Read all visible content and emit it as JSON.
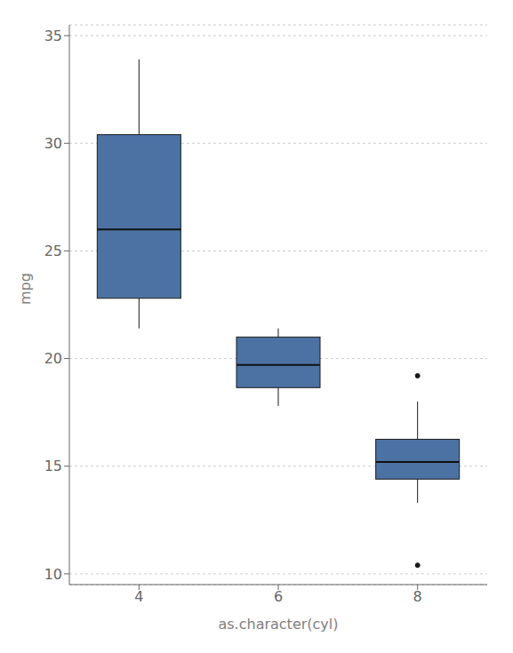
{
  "chart_data": {
    "type": "box",
    "xlabel": "as.character(cyl)",
    "ylabel": "mpg",
    "categories": [
      "4",
      "6",
      "8"
    ],
    "whisker_low": [
      21.4,
      17.8,
      13.3
    ],
    "q1": [
      22.8,
      18.65,
      14.4
    ],
    "median": [
      26.0,
      19.7,
      15.2
    ],
    "q3": [
      30.4,
      21.0,
      16.25
    ],
    "whisker_high": [
      33.9,
      21.4,
      18.0
    ],
    "outliers": [
      [],
      [],
      [
        10.4,
        19.2
      ]
    ],
    "color": "#4c72a4",
    "ylim": [
      9.5,
      35.5
    ],
    "yticks": [
      10,
      15,
      20,
      25,
      30,
      35
    ],
    "grid": true
  }
}
